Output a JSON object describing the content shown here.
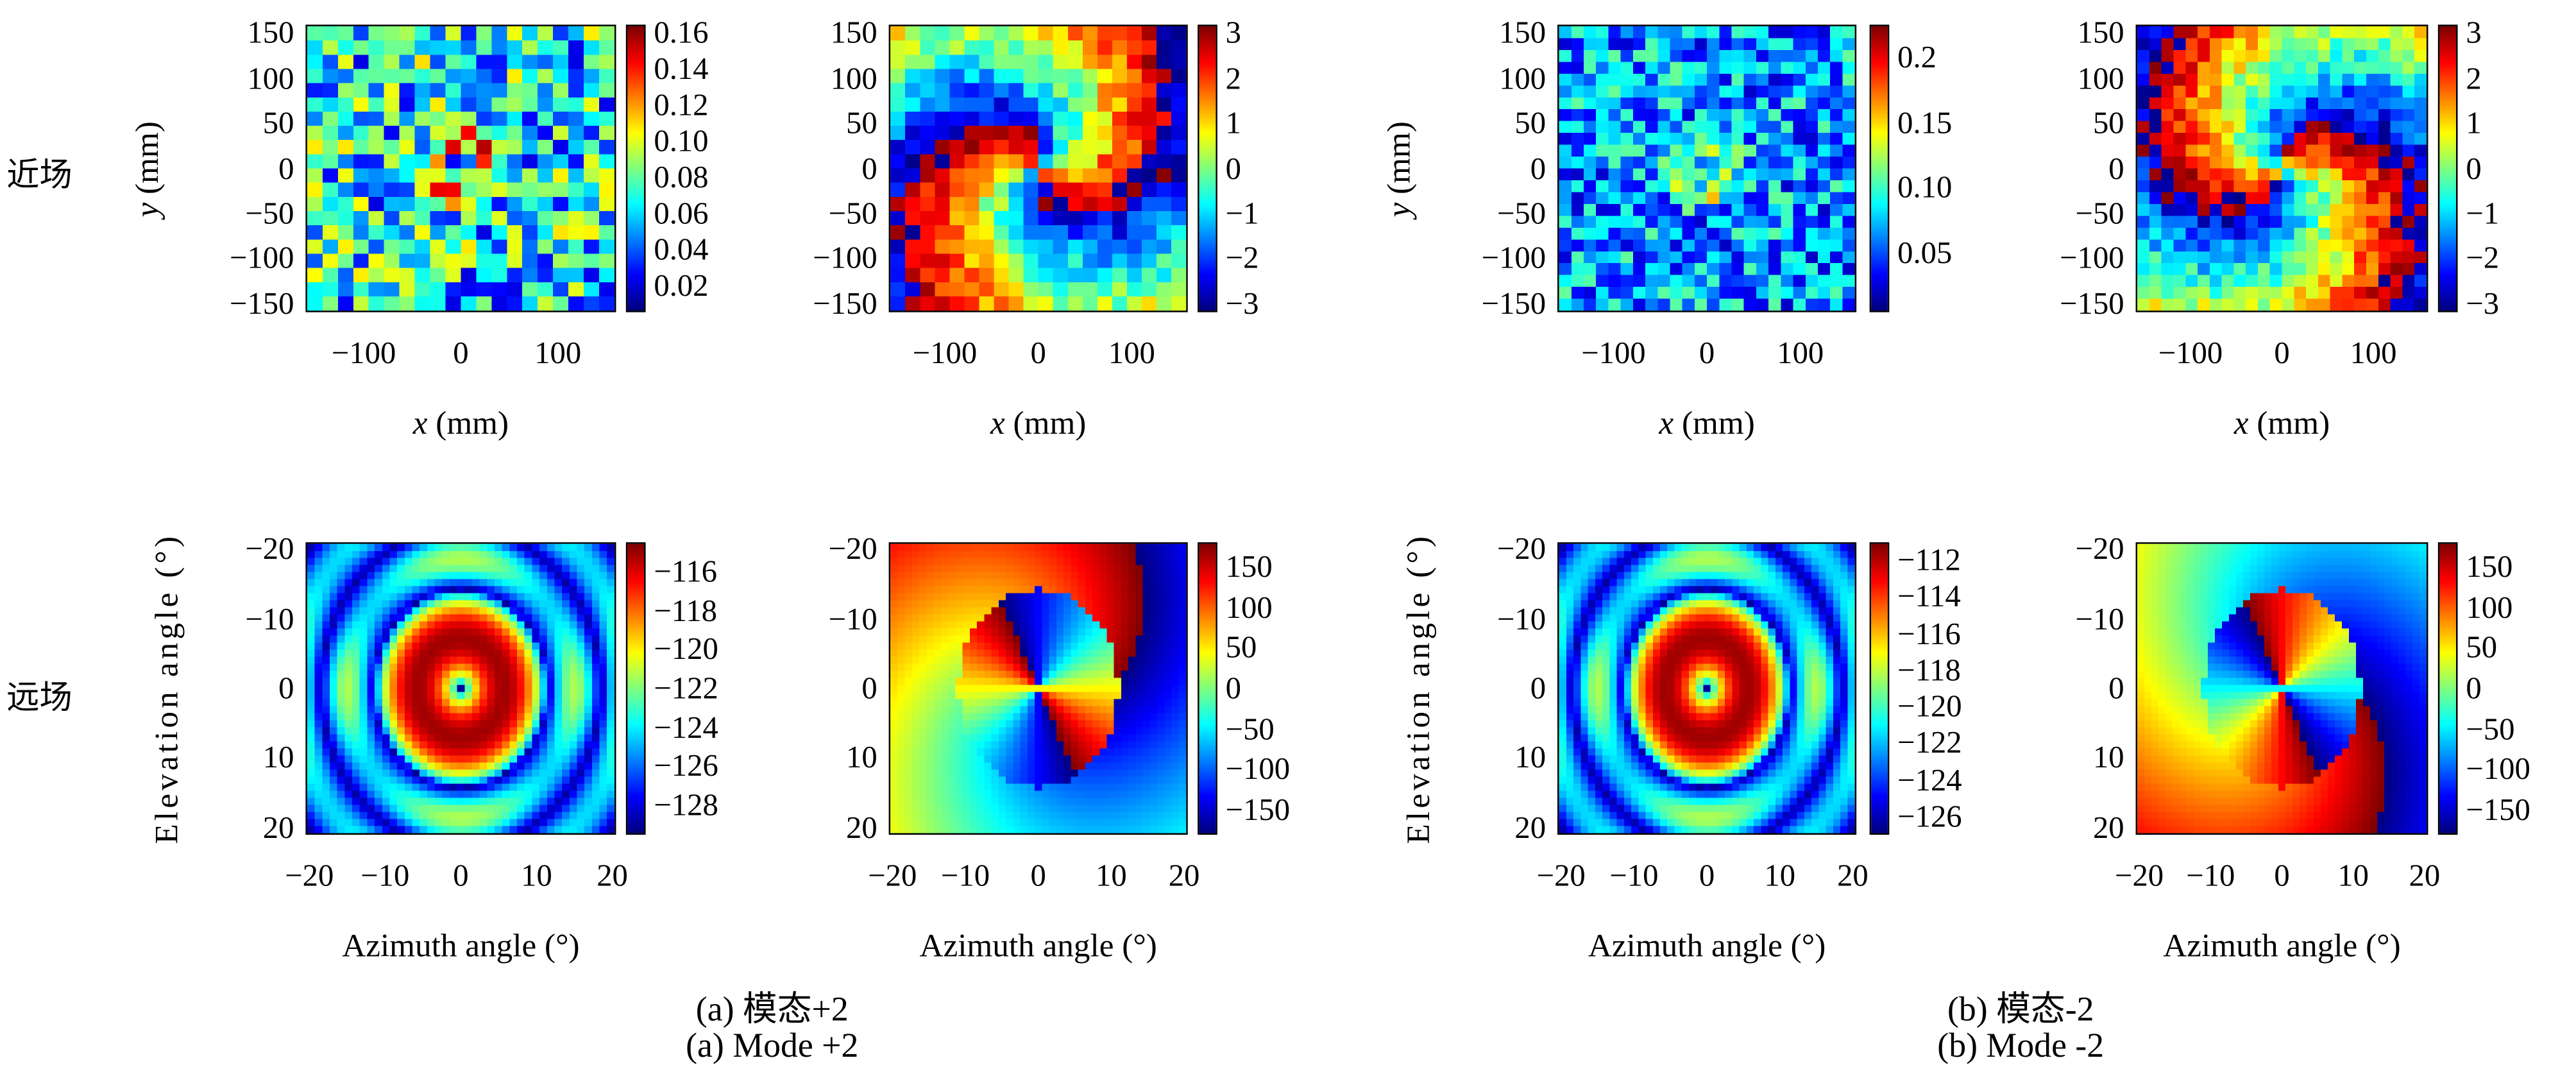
{
  "row_labels": {
    "near": "近场",
    "far": "远场"
  },
  "captions": [
    {
      "cn": "(a) 模态+2",
      "en": "(a) Mode +2"
    },
    {
      "cn": "(b) 模态-2",
      "en": "(b) Mode -2"
    }
  ],
  "chart_data": [
    {
      "type": "heatmap",
      "panel": "near-amplitude-mode+2",
      "xlabel_var": "x",
      "xlabel_unit": "(mm)",
      "ylabel_var": "y",
      "ylabel_unit": "(mm)",
      "xlim": [
        -160,
        160
      ],
      "ylim": [
        160,
        -160
      ],
      "xticks": [
        "-100",
        "0",
        "100"
      ],
      "xtick_values": [
        -100,
        0,
        100
      ],
      "yticks": [
        "150",
        "100",
        "50",
        "0",
        "-50",
        "-100",
        "-150"
      ],
      "ytick_values": [
        150,
        100,
        50,
        0,
        -50,
        -100,
        -150
      ],
      "colormap": "jet",
      "clim": [
        0.005,
        0.165
      ],
      "cbticks": [
        "0.16",
        "0.14",
        "0.12",
        "0.10",
        "0.08",
        "0.06",
        "0.04",
        "0.02"
      ],
      "cbtick_values": [
        0.16,
        0.14,
        0.12,
        0.1,
        0.08,
        0.06,
        0.04,
        0.02
      ],
      "grid": [
        20,
        20
      ],
      "pattern": "noisy ring amplitude, ring at ~30 mm"
    },
    {
      "type": "heatmap",
      "panel": "near-phase-mode+2",
      "xlabel_var": "x",
      "xlabel_unit": "(mm)",
      "ylabel_var": "",
      "ylabel_unit": "",
      "xlim": [
        -160,
        160
      ],
      "ylim": [
        160,
        -160
      ],
      "xticks": [
        "-100",
        "0",
        "100"
      ],
      "xtick_values": [
        -100,
        0,
        100
      ],
      "yticks": [
        "150",
        "100",
        "50",
        "0",
        "-50",
        "-100",
        "-150"
      ],
      "ytick_values": [
        150,
        100,
        50,
        0,
        -50,
        -100,
        -150
      ],
      "colormap": "jet",
      "clim": [
        -3.2,
        3.2
      ],
      "cbticks": [
        "3",
        "2",
        "1",
        "0",
        "-1",
        "-2",
        "-3"
      ],
      "cbtick_values": [
        3,
        2,
        1,
        0,
        -1,
        -2,
        -3
      ],
      "grid": [
        20,
        20
      ],
      "pattern": "spiral phase, topological charge +2"
    },
    {
      "type": "heatmap",
      "panel": "near-amplitude-mode-2",
      "xlabel_var": "x",
      "xlabel_unit": "(mm)",
      "ylabel_var": "y",
      "ylabel_unit": "(mm)",
      "xlim": [
        -160,
        160
      ],
      "ylim": [
        160,
        -160
      ],
      "xticks": [
        "-100",
        "0",
        "100"
      ],
      "xtick_values": [
        -100,
        0,
        100
      ],
      "yticks": [
        "150",
        "100",
        "50",
        "0",
        "-50",
        "-100",
        "-150"
      ],
      "ytick_values": [
        150,
        100,
        50,
        0,
        -50,
        -100,
        -150
      ],
      "colormap": "jet",
      "clim": [
        0.005,
        0.225
      ],
      "cbticks": [
        "0.2",
        "0.15",
        "0.10",
        "0.05"
      ],
      "cbtick_values": [
        0.2,
        0.15,
        0.1,
        0.05
      ],
      "grid": [
        24,
        24
      ],
      "pattern": "noisy ring amplitude, ring at ~30 mm"
    },
    {
      "type": "heatmap",
      "panel": "near-phase-mode-2",
      "xlabel_var": "x",
      "xlabel_unit": "(mm)",
      "ylabel_var": "",
      "ylabel_unit": "",
      "xlim": [
        -160,
        160
      ],
      "ylim": [
        160,
        -160
      ],
      "xticks": [
        "-100",
        "0",
        "100"
      ],
      "xtick_values": [
        -100,
        0,
        100
      ],
      "yticks": [
        "150",
        "100",
        "50",
        "0",
        "-50",
        "-100",
        "-150"
      ],
      "ytick_values": [
        150,
        100,
        50,
        0,
        -50,
        -100,
        -150
      ],
      "colormap": "jet",
      "clim": [
        -3.2,
        3.2
      ],
      "cbticks": [
        "3",
        "2",
        "1",
        "0",
        "-1",
        "-2",
        "-3"
      ],
      "cbtick_values": [
        3,
        2,
        1,
        0,
        -1,
        -2,
        -3
      ],
      "grid": [
        24,
        24
      ],
      "pattern": "spiral phase, topological charge -2"
    },
    {
      "type": "heatmap",
      "panel": "far-amplitude-mode+2",
      "xlabel": "Azimuth angle (°)",
      "ylabel": "Elevation angle (°)",
      "xlim": [
        -20.5,
        20.5
      ],
      "ylim": [
        -21,
        21
      ],
      "xticks": [
        "-20",
        "-10",
        "0",
        "10",
        "20"
      ],
      "xtick_values": [
        -20,
        -10,
        0,
        10,
        20
      ],
      "yticks": [
        "-20",
        "-10",
        "0",
        "10",
        "20"
      ],
      "ytick_values": [
        -20,
        -10,
        0,
        10,
        20
      ],
      "colormap": "jet",
      "clim": [
        -129.5,
        -114.5
      ],
      "cbticks": [
        "-116",
        "-118",
        "-120",
        "-122",
        "-124",
        "-126",
        "-128"
      ],
      "cbtick_values": [
        -116,
        -118,
        -120,
        -122,
        -124,
        -126,
        -128
      ],
      "grid": [
        41,
        41
      ],
      "pattern": "donut beam with central null and sidelobe rings"
    },
    {
      "type": "heatmap",
      "panel": "far-phase-mode+2",
      "xlabel": "Azimuth angle (°)",
      "ylabel": "",
      "xlim": [
        -20.5,
        20.5
      ],
      "ylim": [
        -21,
        21
      ],
      "xticks": [
        "-20",
        "-10",
        "0",
        "10",
        "20"
      ],
      "xtick_values": [
        -20,
        -10,
        0,
        10,
        20
      ],
      "yticks": [
        "-20",
        "-10",
        "0",
        "10",
        "20"
      ],
      "ytick_values": [
        -20,
        -10,
        0,
        10,
        20
      ],
      "colormap": "jet",
      "clim": [
        -180,
        180
      ],
      "cbticks": [
        "150",
        "100",
        "50",
        "0",
        "-50",
        "-100",
        "-150"
      ],
      "cbtick_values": [
        150,
        100,
        50,
        0,
        -50,
        -100,
        -150
      ],
      "grid": [
        41,
        41
      ],
      "pattern": "phase vortex, charge +2"
    },
    {
      "type": "heatmap",
      "panel": "far-amplitude-mode-2",
      "xlabel": "Azimuth angle (°)",
      "ylabel": "Elevation angle (°)",
      "xlim": [
        -20.5,
        20.5
      ],
      "ylim": [
        -21,
        21
      ],
      "xticks": [
        "-20",
        "-10",
        "0",
        "10",
        "20"
      ],
      "xtick_values": [
        -20,
        -10,
        0,
        10,
        20
      ],
      "yticks": [
        "-20",
        "-10",
        "0",
        "10",
        "20"
      ],
      "ytick_values": [
        -20,
        -10,
        0,
        10,
        20
      ],
      "colormap": "jet",
      "clim": [
        -127,
        -111
      ],
      "cbticks": [
        "-112",
        "-114",
        "-116",
        "-118",
        "-120",
        "-122",
        "-124",
        "-126"
      ],
      "cbtick_values": [
        -112,
        -114,
        -116,
        -118,
        -120,
        -122,
        -124,
        -126
      ],
      "grid": [
        41,
        41
      ],
      "pattern": "donut beam with central null and sidelobe rings"
    },
    {
      "type": "heatmap",
      "panel": "far-phase-mode-2",
      "xlabel": "Azimuth angle (°)",
      "ylabel": "",
      "xlim": [
        -20.5,
        20.5
      ],
      "ylim": [
        -21,
        21
      ],
      "xticks": [
        "-20",
        "-10",
        "0",
        "10",
        "20"
      ],
      "xtick_values": [
        -20,
        -10,
        0,
        10,
        20
      ],
      "yticks": [
        "-20",
        "-10",
        "0",
        "10",
        "20"
      ],
      "ytick_values": [
        -20,
        -10,
        0,
        10,
        20
      ],
      "colormap": "jet",
      "clim": [
        -180,
        180
      ],
      "cbticks": [
        "150",
        "100",
        "50",
        "0",
        "-50",
        "-100",
        "-150"
      ],
      "cbtick_values": [
        150,
        100,
        50,
        0,
        -50,
        -100,
        -150
      ],
      "grid": [
        41,
        41
      ],
      "pattern": "phase vortex, charge -2"
    }
  ]
}
